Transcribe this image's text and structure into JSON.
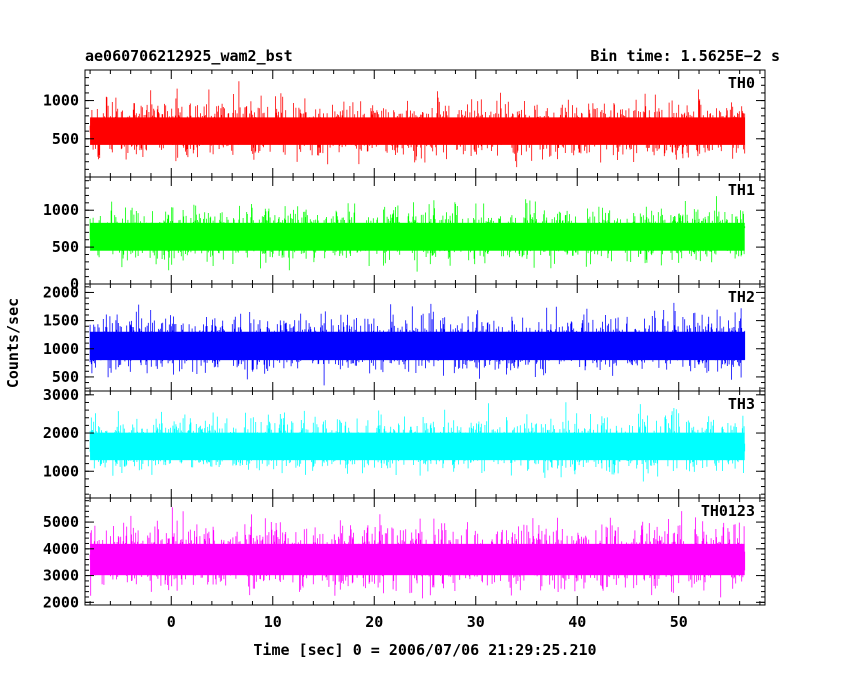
{
  "header": {
    "title_left": "ae060706212925_wam2_bst",
    "title_right": "Bin time: 1.5625E−2 s"
  },
  "chart_data": {
    "type": "line",
    "title": "ae060706212925_wam2_bst",
    "subtitle": "Bin time: 1.5625E−2 s",
    "xlabel": "Time [sec] 0 = 2006/07/06 21:29:25.210",
    "ylabel": "Counts/sec",
    "xlim": [
      -8.5,
      58.5
    ],
    "x_data_range": [
      -8,
      56.5
    ],
    "xticks": [
      0,
      10,
      20,
      30,
      40,
      50
    ],
    "xtick_labels": [
      "0",
      "10",
      "20",
      "30",
      "40",
      "50"
    ],
    "x_minor_step": 2,
    "grid": false,
    "panels": [
      {
        "name": "TH0",
        "color": "#ff0000",
        "ylim": [
          0,
          1400
        ],
        "yticks": [
          500,
          1000
        ],
        "ytick_labels": [
          "500",
          "1000"
        ],
        "y_minor_step": 100,
        "band": [
          100,
          1400
        ],
        "mean": 600,
        "spread": 200
      },
      {
        "name": "TH1",
        "color": "#00ff00",
        "ylim": [
          0,
          1450
        ],
        "yticks": [
          0,
          500,
          1000
        ],
        "ytick_labels": [
          "0",
          "500",
          "1000"
        ],
        "y_minor_step": 100,
        "band": [
          100,
          1400
        ],
        "mean": 640,
        "spread": 210
      },
      {
        "name": "TH2",
        "color": "#0000ff",
        "ylim": [
          250,
          2150
        ],
        "yticks": [
          500,
          1000,
          1500,
          2000
        ],
        "ytick_labels": [
          "500",
          "1000",
          "1500",
          "2000"
        ],
        "y_minor_step": 100,
        "band": [
          350,
          2150
        ],
        "mean": 1050,
        "spread": 280
      },
      {
        "name": "TH3",
        "color": "#00ffff",
        "ylim": [
          300,
          3100
        ],
        "yticks": [
          1000,
          2000,
          3000
        ],
        "ytick_labels": [
          "1000",
          "2000",
          "3000"
        ],
        "y_minor_step": 200,
        "band": [
          500,
          3100
        ],
        "mean": 1650,
        "spread": 400
      },
      {
        "name": "TH0123",
        "color": "#ff00ff",
        "ylim": [
          1900,
          5900
        ],
        "yticks": [
          2000,
          3000,
          4000,
          5000
        ],
        "ytick_labels": [
          "2000",
          "3000",
          "4000",
          "5000"
        ],
        "y_minor_step": 200,
        "band": [
          1950,
          5900
        ],
        "mean": 3600,
        "spread": 650
      }
    ]
  }
}
